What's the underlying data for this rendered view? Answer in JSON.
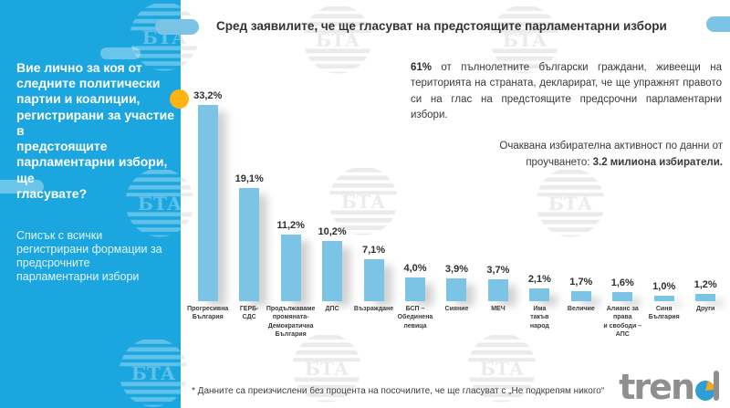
{
  "page": {
    "title": "Сред заявилите, че ще гласуват на предстоящите парламентарни избори"
  },
  "sidebar": {
    "question": "Вие лично за коя от\nследните политически\nпартии и коалиции,\nрегистрирани за участие в\nпредстоящите\nпарламентарни избори, ще\nгласувате?",
    "note": "Списък с всички\nрегистрирани формации за\nпредсрочните\nпарламентарни избори"
  },
  "stats": {
    "turnout_bold": "61%",
    "turnout_text": " от пълнолетните български граждани, живеещи на територията на страната, декларират, че ще упражнят правото си на глас на предстоящите предсрочни парламентарни избори.",
    "expected_text": "Очаквана избирателна активност по данни от проучването: ",
    "expected_bold": "3.2 милиона избиратели."
  },
  "footnote": "* Данните са преизчислени без процента на посочилите, че ще гласуват с „Не подкрепям никого“",
  "watermark": {
    "text": "БТА"
  },
  "logo": {
    "text": "trend"
  },
  "colors": {
    "sidebar_blue": "#1CA6E0",
    "bar_blue": "#7CC4E6",
    "accent_yellow": "#FFB411",
    "text_dark": "#333333",
    "logo_gray": "#8F8F8F",
    "pie_blue": "#2E9FD6",
    "pie_orange": "#F6A81C",
    "watermark_gray": "#EBEBEB"
  },
  "chart_data": {
    "type": "bar",
    "title": "Сред заявилите, че ще гласуват на предстоящите парламентарни избори",
    "categories": [
      "Прогресивна\nБългария",
      "ГЕРБ-\nСДС",
      "Продължаваме\nпромяната-\nДемократична\nБългария",
      "ДПС",
      "Възраждане",
      "БСП –\nОбединена\nлевица",
      "Сияние",
      "МЕЧ",
      "Има\nтакъв\nнарод",
      "Величие",
      "Алианс за права\nи свободи – АПС",
      "Синя\nБългария",
      "Други"
    ],
    "values": [
      33.2,
      19.1,
      11.2,
      10.2,
      7.1,
      4.0,
      3.9,
      3.7,
      2.1,
      1.7,
      1.6,
      1.0,
      1.2
    ],
    "value_suffix": "%",
    "decimal_separator": ",",
    "xlabel": "",
    "ylabel": "",
    "ylim": [
      0,
      35
    ],
    "grid": false,
    "legend": false,
    "bar_color": "#7CC4E6"
  }
}
